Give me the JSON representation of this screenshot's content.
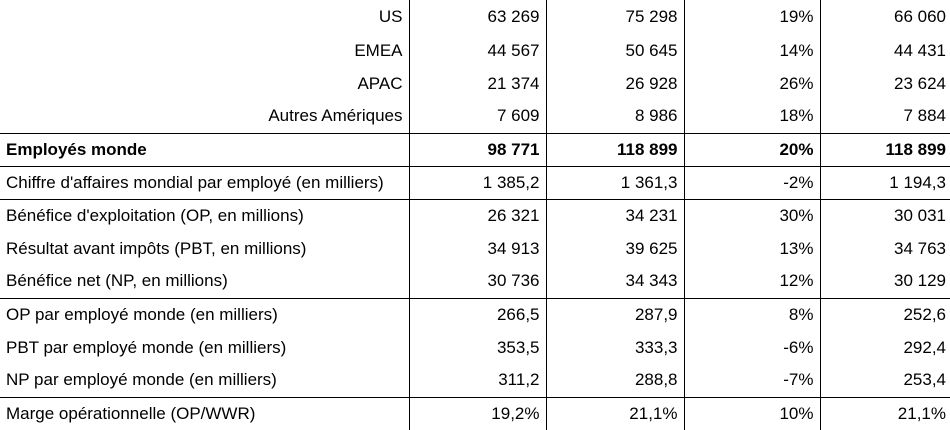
{
  "rows": [
    {
      "label": "US",
      "v1": "63 269",
      "v2": "75 298",
      "v3": "19%",
      "v4": "66 060",
      "align": "right",
      "bold": false,
      "border_top": false
    },
    {
      "label": "EMEA",
      "v1": "44 567",
      "v2": "50 645",
      "v3": "14%",
      "v4": "44 431",
      "align": "right",
      "bold": false,
      "border_top": false
    },
    {
      "label": "APAC",
      "v1": "21 374",
      "v2": "26 928",
      "v3": "26%",
      "v4": "23 624",
      "align": "right",
      "bold": false,
      "border_top": false
    },
    {
      "label": "Autres Amériques",
      "v1": "7 609",
      "v2": "8 986",
      "v3": "18%",
      "v4": "7 884",
      "align": "right",
      "bold": false,
      "border_top": false
    },
    {
      "label": "Employés monde",
      "v1": "98 771",
      "v2": "118 899",
      "v3": "20%",
      "v4": "118 899",
      "align": "left",
      "bold": true,
      "border_top": true
    },
    {
      "label": "Chiffre d'affaires mondial par employé (en milliers)",
      "v1": "1 385,2",
      "v2": "1 361,3",
      "v3": "-2%",
      "v4": "1 194,3",
      "align": "left",
      "bold": false,
      "border_top": true
    },
    {
      "label": "Bénéfice d'exploitation (OP, en millions)",
      "v1": "26 321",
      "v2": "34 231",
      "v3": "30%",
      "v4": "30 031",
      "align": "left",
      "bold": false,
      "border_top": true
    },
    {
      "label": "Résultat avant impôts (PBT, en millions)",
      "v1": "34 913",
      "v2": "39 625",
      "v3": "13%",
      "v4": "34 763",
      "align": "left",
      "bold": false,
      "border_top": false
    },
    {
      "label": "Bénéfice net (NP, en millions)",
      "v1": "30 736",
      "v2": "34 343",
      "v3": "12%",
      "v4": "30 129",
      "align": "left",
      "bold": false,
      "border_top": false
    },
    {
      "label": "OP par employé monde (en milliers)",
      "v1": "266,5",
      "v2": "287,9",
      "v3": "8%",
      "v4": "252,6",
      "align": "left",
      "bold": false,
      "border_top": true
    },
    {
      "label": "PBT par employé monde (en milliers)",
      "v1": "353,5",
      "v2": "333,3",
      "v3": "-6%",
      "v4": "292,4",
      "align": "left",
      "bold": false,
      "border_top": false
    },
    {
      "label": "NP par employé monde (en milliers)",
      "v1": "311,2",
      "v2": "288,8",
      "v3": "-7%",
      "v4": "253,4",
      "align": "left",
      "bold": false,
      "border_top": false
    },
    {
      "label": "Marge opérationnelle (OP/WWR)",
      "v1": "19,2%",
      "v2": "21,1%",
      "v3": "10%",
      "v4": "21,1%",
      "align": "left",
      "bold": false,
      "border_top": true
    }
  ]
}
